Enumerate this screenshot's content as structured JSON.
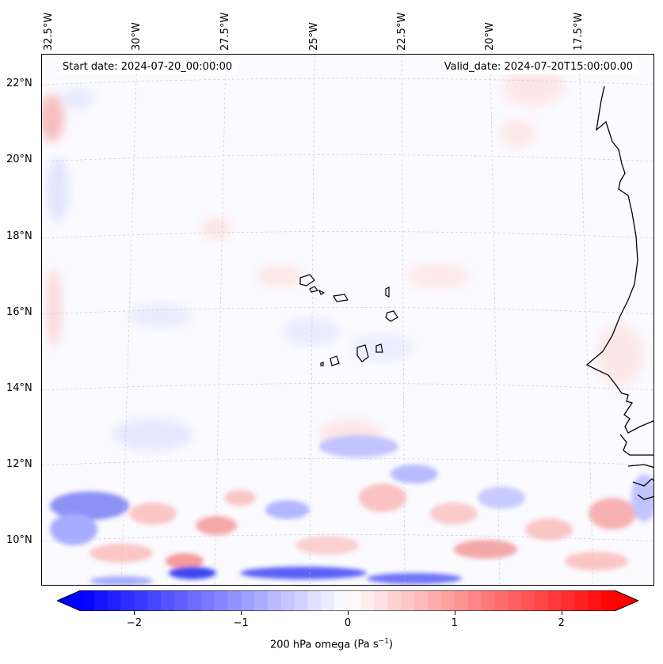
{
  "map": {
    "start_date": "Start date: 2024-07-20_00:00:00",
    "valid_date": "Valid_date: 2024-07-20T15:00:00.00",
    "variable": "200 hPa omega",
    "units_base": "(Pa s",
    "units_exp": "−1",
    "units_close": ")",
    "lon_labels": [
      "32.5°W",
      "30°W",
      "27.5°W",
      "25°W",
      "22.5°W",
      "20°W",
      "17.5°W"
    ],
    "lat_labels": [
      "22°N",
      "20°N",
      "18°N",
      "16°N",
      "14°N",
      "12°N",
      "10°N"
    ],
    "features": [
      "Cape Verde islands",
      "West African coastline"
    ]
  },
  "colorbar": {
    "cmap": "bwr",
    "vmin": -2.5,
    "vmax": 2.5,
    "extend": "both",
    "ticks": [
      {
        "value": -2,
        "label": "−2"
      },
      {
        "value": -1,
        "label": "−1"
      },
      {
        "value": 0,
        "label": "0"
      },
      {
        "value": 1,
        "label": "1"
      },
      {
        "value": 2,
        "label": "2"
      }
    ],
    "colors": {
      "min": "#0000ff",
      "mid": "#ffffff",
      "max": "#ff0000"
    }
  }
}
